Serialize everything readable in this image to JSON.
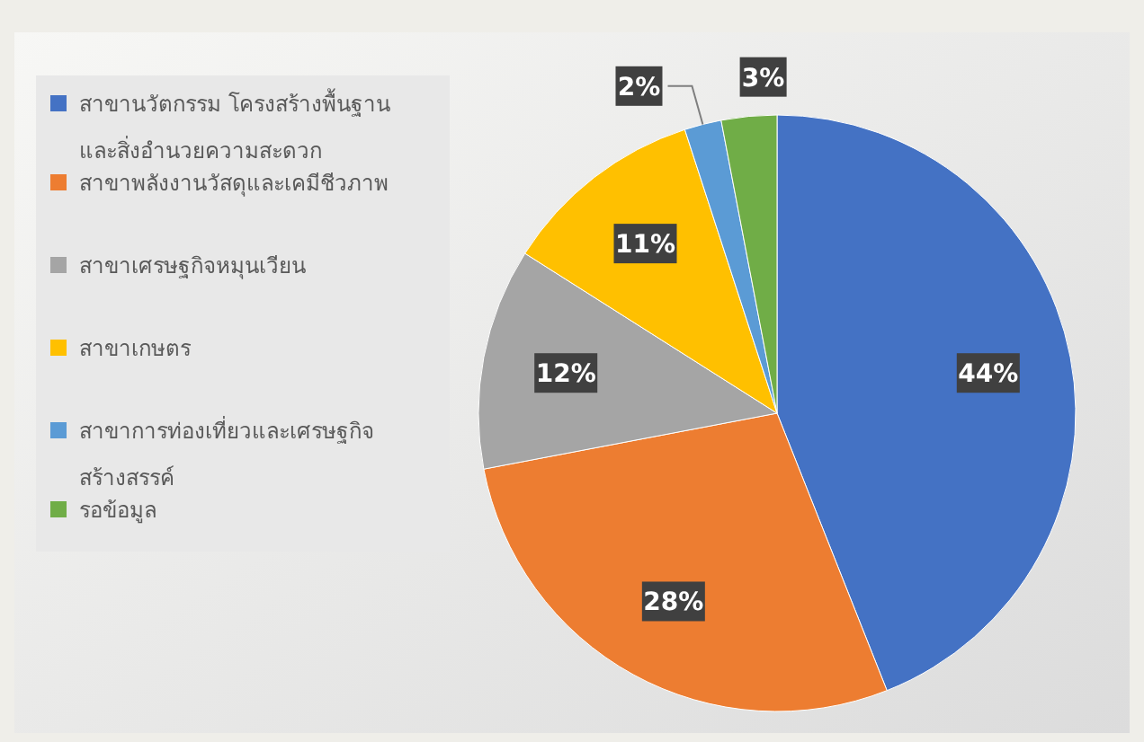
{
  "chart_data": {
    "type": "pie",
    "categories": [
      "สาขานวัตกรรม โครงสร้างพื้นฐานและสิ่งอำนวยความสะดวก",
      "สาขาพลังงานวัสดุและเคมีชีวภาพ",
      "สาขาเศรษฐกิจหมุนเวียน",
      "สาขาเกษตร",
      "สาขาการท่องเที่ยวและเศรษฐกิจสร้างสรรค์",
      "รอข้อมูล"
    ],
    "values": [
      44,
      28,
      12,
      11,
      2,
      3
    ],
    "value_labels": [
      "44%",
      "28%",
      "12%",
      "11%",
      "2%",
      "3%"
    ],
    "colors": [
      "#4472c4",
      "#ed7d31",
      "#a5a5a5",
      "#ffc000",
      "#5b9bd5",
      "#70ad47"
    ],
    "legend": "left"
  }
}
